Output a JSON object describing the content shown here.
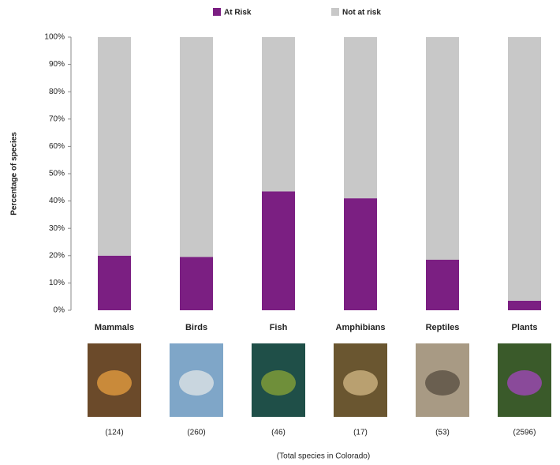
{
  "chart_data": {
    "type": "stacked_bar",
    "y_label": "Percentage of species",
    "categories": [
      "Mammals",
      "Birds",
      "Fish",
      "Amphibians",
      "Reptiles",
      "Plants"
    ],
    "category_notes": [
      "(124)",
      "(260)",
      "(46)",
      "(17)",
      "(53)",
      "(2596)"
    ],
    "footnote": "(Total species in Colorado)",
    "series": [
      {
        "name": "At Risk",
        "color": "#7b1f82",
        "values": [
          20,
          19.5,
          43.5,
          41,
          18.5,
          3.5
        ]
      },
      {
        "name": "Not at risk",
        "color": "#c8c8c8",
        "values": [
          80,
          80.5,
          56.5,
          59,
          81.5,
          96.5
        ]
      }
    ],
    "ylim": [
      0,
      100
    ],
    "yticks": [
      {
        "value": 0,
        "label": "0%"
      },
      {
        "value": 10,
        "label": "10%"
      },
      {
        "value": 20,
        "label": "20%"
      },
      {
        "value": 30,
        "label": "30%"
      },
      {
        "value": 40,
        "label": "40%"
      },
      {
        "value": 50,
        "label": "50%"
      },
      {
        "value": 60,
        "label": "60%"
      },
      {
        "value": 70,
        "label": "70%"
      },
      {
        "value": 80,
        "label": "80%"
      },
      {
        "value": 90,
        "label": "90%"
      },
      {
        "value": 100,
        "label": "100%"
      }
    ],
    "legend": "top"
  }
}
